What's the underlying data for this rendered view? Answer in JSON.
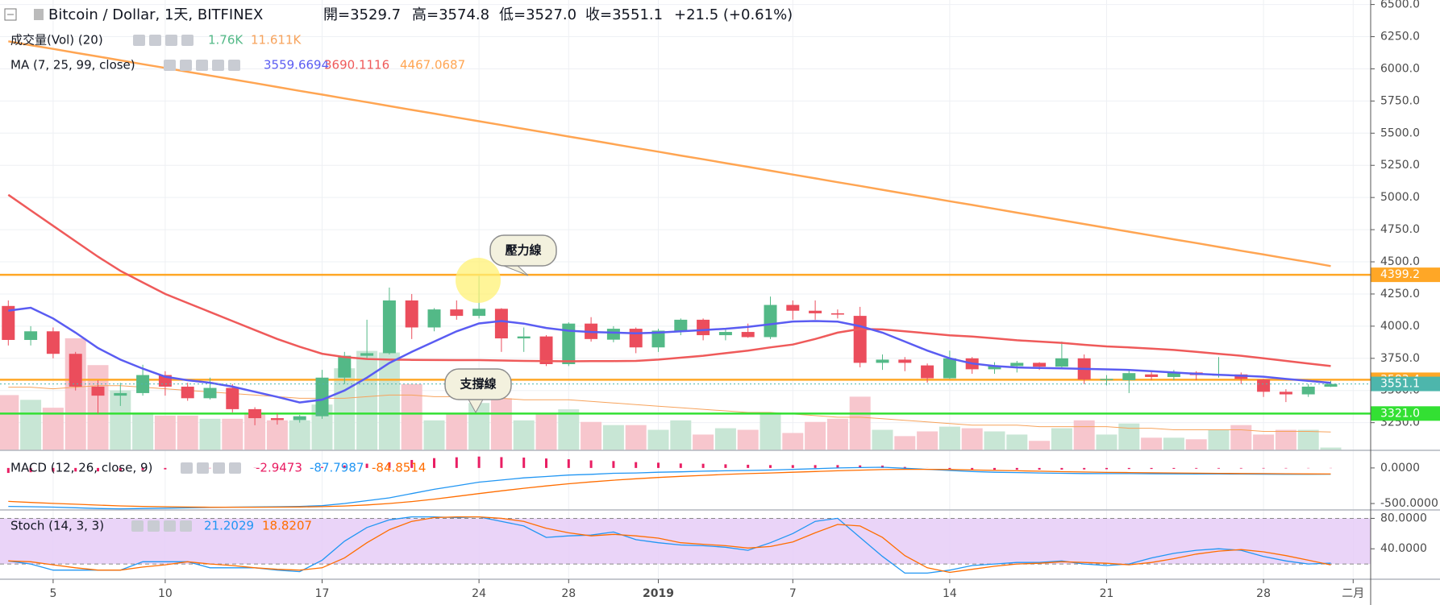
{
  "chart_data": [
    {
      "type": "candlestick",
      "title": "Bitcoin / Dollar, 1天, BITFINEX",
      "ohlc_labels": [
        "開=3529.7",
        "高=3574.8",
        "低=3527.0",
        "收=3551.1"
      ],
      "change": "+21.5 (+0.61%)",
      "categories": [
        null,
        null,
        "5",
        null,
        null,
        null,
        null,
        "10",
        null,
        null,
        null,
        null,
        null,
        null,
        "17",
        null,
        null,
        null,
        null,
        null,
        null,
        "24",
        null,
        null,
        null,
        "28",
        null,
        null,
        null,
        "2019",
        null,
        null,
        null,
        null,
        null,
        "7",
        null,
        null,
        null,
        null,
        null,
        null,
        "14",
        null,
        null,
        null,
        null,
        null,
        null,
        "21",
        null,
        null,
        null,
        null,
        null,
        null,
        "28",
        null,
        null,
        null,
        "二月"
      ],
      "open": [
        4157,
        3893,
        3960,
        3785,
        3530,
        3460,
        3480,
        3620,
        3530,
        3440,
        3520,
        3355,
        3285,
        3270,
        3300,
        3600,
        3770,
        3790,
        4200,
        3990,
        4130,
        4080,
        4135,
        3905,
        3920,
        3705,
        4020,
        3895,
        3980,
        3835,
        3965,
        4050,
        3930,
        3955,
        3915,
        4165,
        4120,
        4100,
        4080,
        3715,
        3740,
        3695,
        3595,
        3750,
        3665,
        3690,
        3715,
        3685,
        3750,
        3585,
        3580,
        3625,
        3605,
        3640,
        3620,
        3625,
        3585,
        3490,
        3470,
        3529.7,
        null
      ],
      "high": [
        4200,
        4000,
        3990,
        3800,
        3580,
        3560,
        3700,
        3650,
        3560,
        3600,
        3550,
        3370,
        3320,
        3310,
        3660,
        3800,
        4050,
        4300,
        4250,
        4140,
        4200,
        4390,
        4140,
        3990,
        3930,
        4030,
        4070,
        4000,
        3990,
        3980,
        4060,
        4060,
        3980,
        4020,
        4230,
        4200,
        4200,
        4130,
        4150,
        3780,
        3760,
        3710,
        3810,
        3760,
        3720,
        3730,
        3720,
        3880,
        3780,
        3620,
        3660,
        3650,
        3660,
        3650,
        3760,
        3640,
        3590,
        3510,
        3550,
        3574.8,
        null
      ],
      "low": [
        3850,
        3850,
        3750,
        3500,
        3320,
        3380,
        3460,
        3460,
        3420,
        3430,
        3330,
        3230,
        3235,
        3250,
        3280,
        3550,
        3740,
        3780,
        3900,
        3960,
        4050,
        4060,
        3800,
        3800,
        3690,
        3690,
        3880,
        3875,
        3790,
        3800,
        3930,
        3890,
        3890,
        3910,
        3900,
        4050,
        4050,
        4060,
        3680,
        3660,
        3650,
        3560,
        3590,
        3630,
        3630,
        3640,
        3660,
        3680,
        3550,
        3540,
        3480,
        3580,
        3580,
        3580,
        3600,
        3550,
        3450,
        3410,
        3450,
        3527,
        null
      ],
      "close": [
        3893,
        3960,
        3785,
        3530,
        3460,
        3480,
        3620,
        3530,
        3440,
        3520,
        3355,
        3285,
        3270,
        3300,
        3600,
        3770,
        3790,
        4200,
        3990,
        4130,
        4080,
        4135,
        3905,
        3920,
        3705,
        4020,
        3900,
        3980,
        3835,
        3965,
        4050,
        3930,
        3955,
        3915,
        4165,
        4120,
        4100,
        4090,
        3715,
        3740,
        3715,
        3595,
        3750,
        3665,
        3690,
        3715,
        3685,
        3750,
        3585,
        3590,
        3635,
        3605,
        3640,
        3620,
        3625,
        3590,
        3490,
        3470,
        3530,
        3551.1,
        null
      ],
      "up_color": "#53b987",
      "down_color": "#eb4d5c",
      "last_color": "#4db6ac",
      "ylim": [
        3035,
        6535
      ],
      "yticks": [
        {
          "value": 3250,
          "label": "3250.0"
        },
        {
          "value": 3500,
          "label": "3500.0"
        },
        {
          "value": 3750,
          "label": "3750.0"
        },
        {
          "value": 4000,
          "label": "4000.0"
        },
        {
          "value": 4250,
          "label": "4250.0"
        },
        {
          "value": 4500,
          "label": "4500.0"
        },
        {
          "value": 4750,
          "label": "4750.0"
        },
        {
          "value": 5000,
          "label": "5000.0"
        },
        {
          "value": 5250,
          "label": "5250.0"
        },
        {
          "value": 5500,
          "label": "5500.0"
        },
        {
          "value": 5750,
          "label": "5750.0"
        },
        {
          "value": 6000,
          "label": "6000.0"
        },
        {
          "value": 6250,
          "label": "6250.0"
        },
        {
          "value": 6500,
          "label": "6500.0"
        }
      ],
      "grid": true,
      "volume": {
        "name": "成交量(Vol) (20)",
        "last_label": "1.76K",
        "ylim": [
          0,
          73
        ],
        "up_color": "#c8e6d5",
        "down_color": "#f7c6cd",
        "values": [
          35,
          32,
          27,
          71,
          54,
          38,
          24,
          22,
          22,
          20,
          20,
          24,
          19,
          19,
          29,
          52,
          63,
          62,
          42,
          19,
          23,
          30,
          33,
          19,
          23,
          26,
          18,
          16,
          16,
          13,
          19,
          10,
          14,
          13,
          23,
          11,
          18,
          20,
          34,
          13,
          9,
          12,
          15,
          14,
          12,
          10,
          6,
          14,
          19,
          10,
          17,
          8,
          8,
          7,
          13,
          16,
          10,
          13,
          13,
          1.76,
          null
        ],
        "ma": {
          "color": "#f7a35c",
          "last_label": "11.611K",
          "values": [
            40,
            40,
            39,
            40,
            41,
            41,
            40,
            39,
            38,
            37,
            36,
            35,
            34,
            33,
            33,
            33,
            34,
            35,
            35,
            34,
            34,
            34,
            33,
            32,
            32,
            32,
            31,
            30,
            29,
            28,
            27,
            26,
            25,
            24,
            24,
            23,
            22,
            21,
            21,
            20,
            19,
            18,
            17,
            16,
            16,
            16,
            15,
            15,
            15,
            15,
            14,
            14,
            13,
            13,
            13,
            13,
            12,
            12,
            12,
            11.611,
            null
          ]
        }
      },
      "ma_name": "MA (7, 25, 99, close)",
      "series": [
        {
          "color": "#5a5cf2",
          "values": [
            4121,
            4143,
            4060,
            3950,
            3830,
            3740,
            3670,
            3607,
            3580,
            3560,
            3530,
            3490,
            3450,
            3407,
            3429,
            3500,
            3600,
            3714,
            3800,
            3880,
            3960,
            4021,
            4040,
            4020,
            3986,
            3965,
            3955,
            3950,
            3945,
            3950,
            3960,
            3970,
            3980,
            3995,
            4015,
            4036,
            4040,
            4035,
            4000,
            3950,
            3880,
            3810,
            3750,
            3710,
            3690,
            3679,
            3675,
            3672,
            3668,
            3664,
            3660,
            3650,
            3640,
            3630,
            3622,
            3615,
            3607,
            3590,
            3575,
            3559.6694,
            null
          ]
        },
        {
          "color": "#ef5a5a",
          "values": [
            5021,
            4900,
            4780,
            4660,
            4540,
            4430,
            4340,
            4250,
            4180,
            4110,
            4040,
            3970,
            3900,
            3840,
            3786,
            3760,
            3745,
            3740,
            3738,
            3737,
            3736,
            3736,
            3733,
            3730,
            3728,
            3727,
            3728,
            3729,
            3730,
            3740,
            3755,
            3770,
            3790,
            3810,
            3835,
            3857,
            3900,
            3950,
            3978,
            3975,
            3960,
            3945,
            3929,
            3920,
            3905,
            3890,
            3880,
            3870,
            3855,
            3843,
            3835,
            3825,
            3815,
            3800,
            3785,
            3770,
            3750,
            3730,
            3710,
            3690.1116,
            null
          ]
        },
        {
          "color": "#ffa552",
          "values": [
            6214,
            6184,
            6155,
            6125,
            6096,
            6066,
            6036,
            6007,
            5977,
            5948,
            5918,
            5889,
            5859,
            5829,
            5800,
            5770,
            5741,
            5711,
            5681,
            5652,
            5622,
            5593,
            5563,
            5533,
            5504,
            5474,
            5445,
            5415,
            5385,
            5356,
            5326,
            5297,
            5267,
            5238,
            5208,
            5178,
            5149,
            5119,
            5090,
            5060,
            5030,
            5001,
            4971,
            4942,
            4912,
            4882,
            4853,
            4823,
            4794,
            4764,
            4734,
            4705,
            4675,
            4646,
            4616,
            4586,
            4557,
            4527,
            4498,
            4467.0687,
            null
          ]
        }
      ],
      "hlines": [
        {
          "value": 4399.2,
          "color": "#ffa726"
        },
        {
          "value": 3583.4,
          "color": "#ffa726"
        },
        {
          "value": 3321,
          "label": "3321.0",
          "color": "#33e033"
        }
      ],
      "annotations": [
        {
          "text": "壓力線"
        },
        {
          "text": "支撐線"
        }
      ]
    },
    {
      "type": "macd",
      "name": "MACD (12, 26, close, 9)",
      "histogram": {
        "color": "#e91e63",
        "values": [
          -70,
          -60,
          -52,
          -50,
          -48,
          -42,
          -30,
          -20,
          -11,
          -4,
          1,
          3,
          5,
          8,
          14,
          35,
          60,
          80,
          112,
          138,
          150,
          160,
          152,
          146,
          133,
          122,
          106,
          97,
          82,
          74,
          63,
          59,
          51,
          45,
          40,
          40,
          40,
          40,
          36,
          33,
          14,
          -1,
          -13,
          -22,
          -26,
          -25,
          -24,
          -23,
          -21,
          -18,
          -15,
          -14,
          -12,
          -10,
          -9,
          -8,
          -7,
          -6,
          -4,
          -2.9473,
          null
        ]
      },
      "series": [
        {
          "color": "#2196f3",
          "values": [
            -540,
            -545,
            -550,
            -560,
            -570,
            -575,
            -570,
            -565,
            -560,
            -555,
            -550,
            -548,
            -545,
            -540,
            -530,
            -500,
            -460,
            -420,
            -360,
            -300,
            -250,
            -200,
            -170,
            -140,
            -120,
            -100,
            -90,
            -75,
            -70,
            -60,
            -55,
            -45,
            -40,
            -35,
            -30,
            -20,
            -10,
            0,
            5,
            10,
            -5,
            -20,
            -35,
            -50,
            -60,
            -65,
            -70,
            -75,
            -78,
            -80,
            -80,
            -82,
            -83,
            -84,
            -85,
            -86,
            -87,
            -88,
            -88,
            -87.7987,
            null
          ]
        },
        {
          "color": "#ff6d00",
          "values": [
            -470,
            -485,
            -498,
            -510,
            -522,
            -533,
            -540,
            -545,
            -549,
            -551,
            -551,
            -551,
            -550,
            -548,
            -544,
            -535,
            -520,
            -500,
            -472,
            -438,
            -400,
            -360,
            -322,
            -286,
            -253,
            -222,
            -196,
            -172,
            -152,
            -134,
            -118,
            -104,
            -91,
            -80,
            -70,
            -60,
            -50,
            -40,
            -31,
            -23,
            -19,
            -19,
            -22,
            -28,
            -34,
            -40,
            -46,
            -52,
            -57,
            -62,
            -65,
            -68,
            -71,
            -74,
            -76,
            -78,
            -80,
            -82,
            -84,
            -84.8514,
            null
          ]
        }
      ],
      "ylim": [
        -590,
        225
      ],
      "yticks": [
        {
          "value": 0,
          "label": "0.0000"
        },
        {
          "value": -500,
          "label": "-500.0000"
        }
      ]
    },
    {
      "type": "line",
      "name": "Stoch (14, 3, 3)",
      "series": [
        {
          "color": "#2196f3",
          "values": [
            24,
            20,
            12,
            12,
            12,
            12,
            23,
            23,
            23,
            15,
            15,
            15,
            12,
            10,
            25,
            50,
            68,
            78,
            82,
            82,
            81,
            82,
            76,
            70,
            55,
            57,
            58,
            62,
            52,
            48,
            45,
            44,
            42,
            38,
            48,
            60,
            76,
            80,
            55,
            30,
            8,
            8,
            12,
            18,
            20,
            22,
            22,
            24,
            20,
            18,
            20,
            28,
            34,
            38,
            40,
            38,
            30,
            24,
            20,
            21.2029,
            null
          ]
        },
        {
          "color": "#ff6d00",
          "values": [
            24,
            23,
            19,
            15,
            12,
            12,
            16,
            19,
            23,
            20,
            18,
            15,
            13,
            12,
            15,
            28,
            48,
            65,
            76,
            81,
            82,
            82,
            80,
            76,
            67,
            61,
            57,
            59,
            57,
            54,
            48,
            46,
            44,
            41,
            43,
            49,
            61,
            72,
            70,
            55,
            31,
            15,
            9,
            13,
            17,
            20,
            21,
            23,
            22,
            21,
            19,
            22,
            27,
            33,
            37,
            39,
            36,
            31,
            25,
            18.8207,
            null
          ]
        }
      ],
      "band": [
        20,
        80
      ],
      "band_color": "#e6cdf7",
      "ylim": [
        0,
        90
      ],
      "yticks": [
        {
          "value": 80,
          "label": "80.0000"
        },
        {
          "value": 40,
          "label": "40.0000"
        }
      ]
    }
  ]
}
